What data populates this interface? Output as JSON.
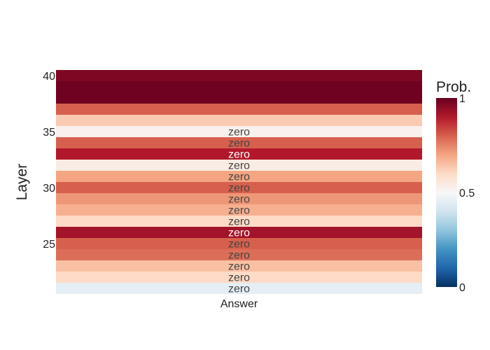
{
  "chart_data": {
    "type": "heatmap",
    "x_categories": [
      "Answer"
    ],
    "ylabel": "Layer",
    "y_tick_labels": [
      "25",
      "30",
      "35",
      "40"
    ],
    "y_ticks": [
      25,
      30,
      35,
      40
    ],
    "ylim": [
      20.5,
      40.5
    ],
    "rows": [
      {
        "layer": 21,
        "prob": 0.45,
        "label": "zero"
      },
      {
        "layer": 22,
        "prob": 0.6,
        "label": "zero"
      },
      {
        "layer": 23,
        "prob": 0.65,
        "label": "zero"
      },
      {
        "layer": 24,
        "prob": 0.78,
        "label": "zero"
      },
      {
        "layer": 25,
        "prob": 0.8,
        "label": "zero"
      },
      {
        "layer": 26,
        "prob": 0.92,
        "label": "zero"
      },
      {
        "layer": 27,
        "prob": 0.6,
        "label": "zero"
      },
      {
        "layer": 28,
        "prob": 0.68,
        "label": "zero"
      },
      {
        "layer": 29,
        "prob": 0.72,
        "label": "zero"
      },
      {
        "layer": 30,
        "prob": 0.8,
        "label": "zero"
      },
      {
        "layer": 31,
        "prob": 0.7,
        "label": "zero"
      },
      {
        "layer": 32,
        "prob": 0.54,
        "label": "zero"
      },
      {
        "layer": 33,
        "prob": 0.9,
        "label": "zero"
      },
      {
        "layer": 34,
        "prob": 0.8,
        "label": "zero"
      },
      {
        "layer": 35,
        "prob": 0.52,
        "label": "zero"
      },
      {
        "layer": 36,
        "prob": 0.63,
        "label": ""
      },
      {
        "layer": 37,
        "prob": 0.8,
        "label": ""
      },
      {
        "layer": 38,
        "prob": 0.99,
        "label": ""
      },
      {
        "layer": 39,
        "prob": 0.99,
        "label": ""
      },
      {
        "layer": 40,
        "prob": 0.97,
        "label": ""
      }
    ],
    "colorbar": {
      "title": "Prob.",
      "range": [
        0,
        1
      ],
      "tick_values": [
        0,
        0.5,
        1
      ],
      "tick_labels": [
        "0",
        "0.5",
        "1"
      ],
      "colorscale": [
        [
          0.0,
          "#053061"
        ],
        [
          0.1,
          "#2166ac"
        ],
        [
          0.2,
          "#4393c3"
        ],
        [
          0.3,
          "#92c5de"
        ],
        [
          0.4,
          "#d1e5f0"
        ],
        [
          0.5,
          "#f7f7f7"
        ],
        [
          0.6,
          "#fddbc7"
        ],
        [
          0.7,
          "#f4a582"
        ],
        [
          0.8,
          "#d6604d"
        ],
        [
          0.9,
          "#b2182b"
        ],
        [
          1.0,
          "#67001f"
        ]
      ]
    }
  }
}
